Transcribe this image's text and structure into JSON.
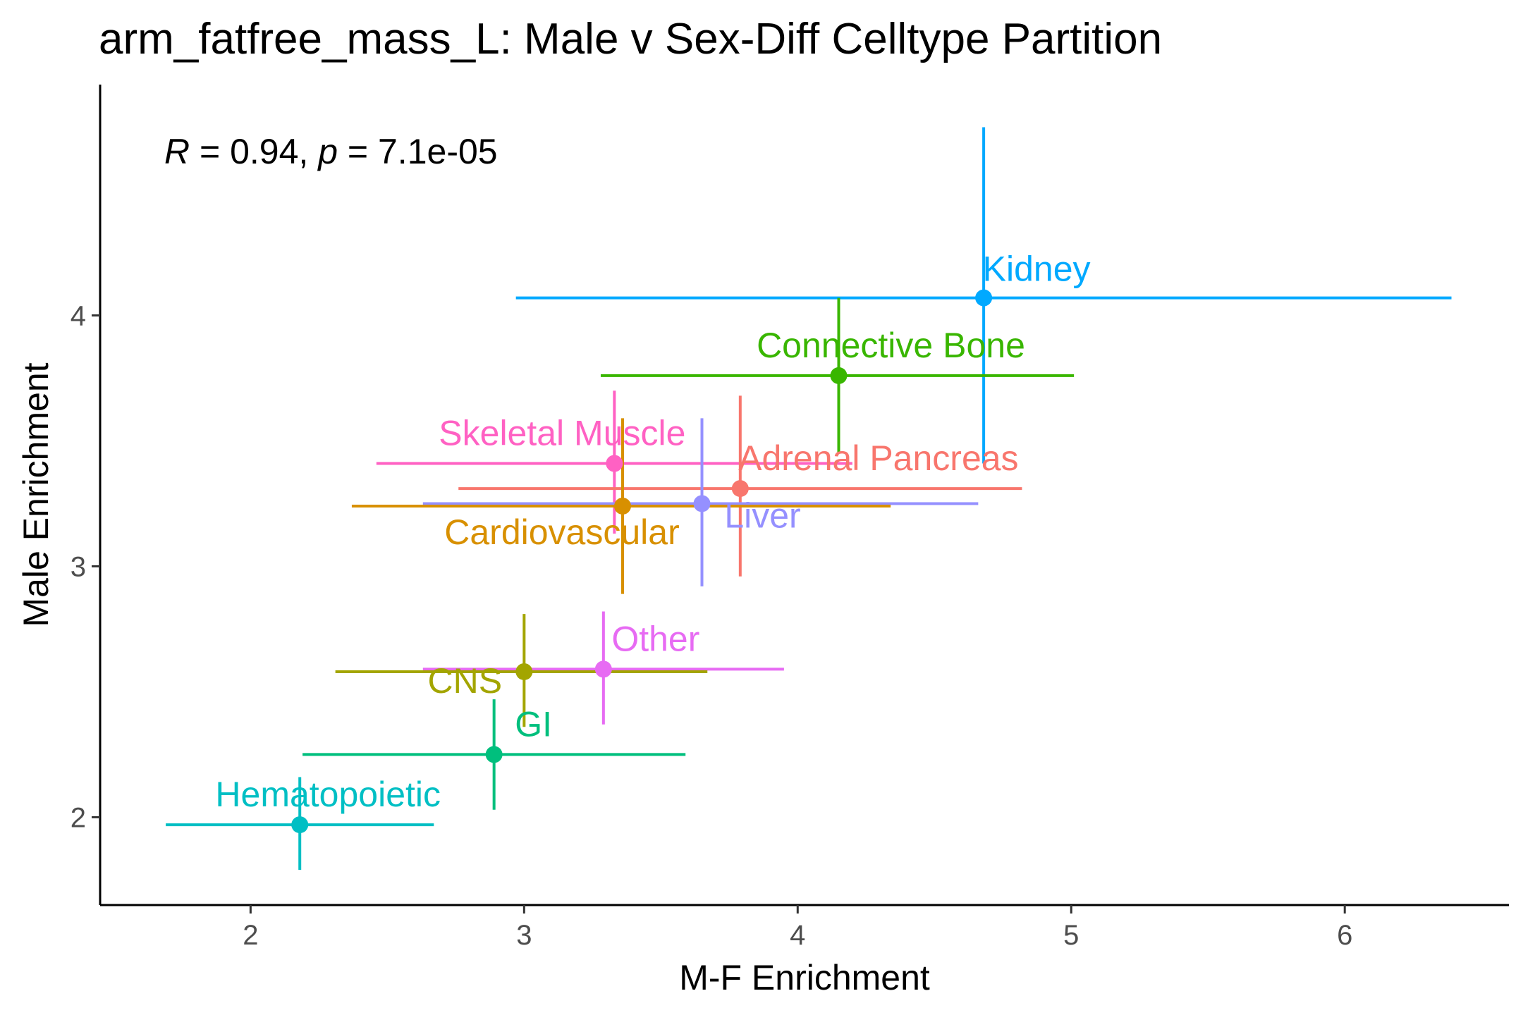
{
  "chart_data": {
    "type": "scatter",
    "title": "arm_fatfree_mass_L: Male v Sex-Diff Celltype Partition",
    "xlabel": "M-F Enrichment",
    "ylabel": "Male Enrichment",
    "xlim": [
      1.45,
      6.6
    ],
    "ylim": [
      1.65,
      4.92
    ],
    "xticks": [
      2,
      3,
      4,
      5,
      6
    ],
    "yticks": [
      2,
      3,
      4
    ],
    "grid": false,
    "legend": "none",
    "annotation": {
      "r_symbol": "R",
      "r_text": " = 0.94, ",
      "p_symbol": "p",
      "p_text": " = 7.1e-05"
    },
    "points": [
      {
        "label": "Kidney",
        "x": 4.68,
        "y": 4.07,
        "xmin": 2.97,
        "xmax": 6.39,
        "ymin": 3.41,
        "ymax": 4.75,
        "color": "#00a9ff"
      },
      {
        "label": "Connective Bone",
        "x": 4.15,
        "y": 3.76,
        "xmin": 3.28,
        "xmax": 5.01,
        "ymin": 3.45,
        "ymax": 4.07,
        "color": "#39b600"
      },
      {
        "label": "Skeletal Muscle",
        "x": 3.33,
        "y": 3.41,
        "xmin": 2.46,
        "xmax": 4.2,
        "ymin": 3.13,
        "ymax": 3.7,
        "color": "#ff61c3"
      },
      {
        "label": "Adrenal Pancreas",
        "x": 3.79,
        "y": 3.31,
        "xmin": 2.76,
        "xmax": 4.82,
        "ymin": 2.96,
        "ymax": 3.68,
        "color": "#f8766d"
      },
      {
        "label": "Liver",
        "x": 3.65,
        "y": 3.25,
        "xmin": 2.63,
        "xmax": 4.66,
        "ymin": 2.92,
        "ymax": 3.59,
        "color": "#9590ff"
      },
      {
        "label": "Cardiovascular",
        "x": 3.36,
        "y": 3.24,
        "xmin": 2.37,
        "xmax": 4.34,
        "ymin": 2.89,
        "ymax": 3.59,
        "color": "#d89000"
      },
      {
        "label": "Other",
        "x": 3.29,
        "y": 2.59,
        "xmin": 2.63,
        "xmax": 3.95,
        "ymin": 2.37,
        "ymax": 2.82,
        "color": "#e76bf3"
      },
      {
        "label": "CNS",
        "x": 3.0,
        "y": 2.58,
        "xmin": 2.31,
        "xmax": 3.67,
        "ymin": 2.36,
        "ymax": 2.81,
        "color": "#a3a500"
      },
      {
        "label": "GI",
        "x": 2.89,
        "y": 2.25,
        "xmin": 2.19,
        "xmax": 3.59,
        "ymin": 2.03,
        "ymax": 2.47,
        "color": "#00bf7d"
      },
      {
        "label": "Hematopoietic",
        "x": 2.18,
        "y": 1.97,
        "xmin": 1.69,
        "xmax": 2.67,
        "ymin": 1.79,
        "ymax": 2.16,
        "color": "#00bfc4"
      }
    ]
  }
}
